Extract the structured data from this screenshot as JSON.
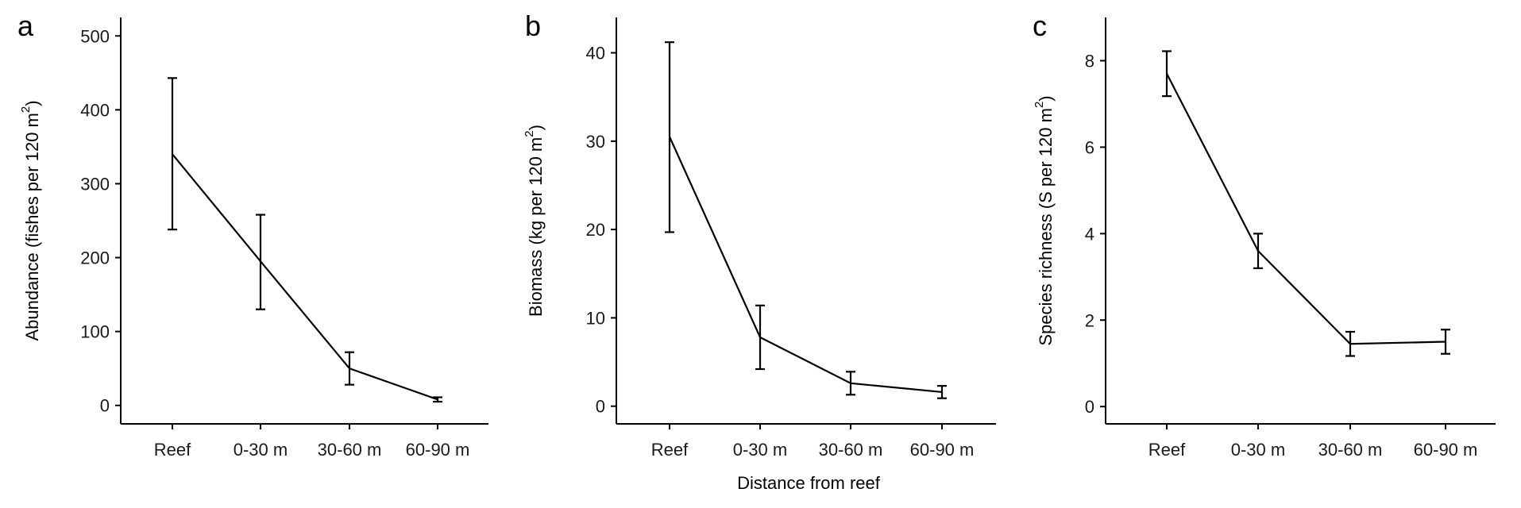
{
  "figure": {
    "shared_xlabel": "Distance from reef"
  },
  "chart_data": [
    {
      "type": "line",
      "panel": "a",
      "categories": [
        "Reef",
        "0-30 m",
        "30-60 m",
        "60-90 m"
      ],
      "values": [
        340,
        195,
        50,
        8
      ],
      "error_low": [
        238,
        130,
        28,
        5
      ],
      "error_high": [
        443,
        258,
        72,
        11
      ],
      "ylabel_main": "Abundance (fishes per 120 m",
      "ylabel_sup": "2",
      "ylabel_end": ")",
      "ylim": [
        -25,
        525
      ],
      "yticks": [
        "0",
        "100",
        "200",
        "300",
        "400",
        "500"
      ],
      "ytick_values": [
        0,
        100,
        200,
        300,
        400,
        500
      ]
    },
    {
      "type": "line",
      "panel": "b",
      "categories": [
        "Reef",
        "0-30 m",
        "30-60 m",
        "60-90 m"
      ],
      "values": [
        30.5,
        7.8,
        2.6,
        1.6
      ],
      "error_low": [
        19.7,
        4.2,
        1.3,
        0.9
      ],
      "error_high": [
        41.2,
        11.4,
        3.9,
        2.3
      ],
      "ylabel_main": "Biomass (kg per 120 m",
      "ylabel_sup": "2",
      "ylabel_end": ")",
      "ylim": [
        -2,
        44
      ],
      "yticks": [
        "0",
        "10",
        "20",
        "30",
        "40"
      ],
      "ytick_values": [
        0,
        10,
        20,
        30,
        40
      ]
    },
    {
      "type": "line",
      "panel": "c",
      "categories": [
        "Reef",
        "0-30 m",
        "30-60 m",
        "60-90 m"
      ],
      "values": [
        7.7,
        3.6,
        1.45,
        1.5
      ],
      "error_low": [
        7.18,
        3.2,
        1.17,
        1.22
      ],
      "error_high": [
        8.22,
        4.0,
        1.73,
        1.78
      ],
      "ylabel_main": "Species richness (S per 120 m",
      "ylabel_sup": "2",
      "ylabel_end": ")",
      "ylim": [
        -0.4,
        9.0
      ],
      "yticks": [
        "0",
        "2",
        "4",
        "6",
        "8"
      ],
      "ytick_values": [
        0,
        2,
        4,
        6,
        8
      ]
    }
  ]
}
